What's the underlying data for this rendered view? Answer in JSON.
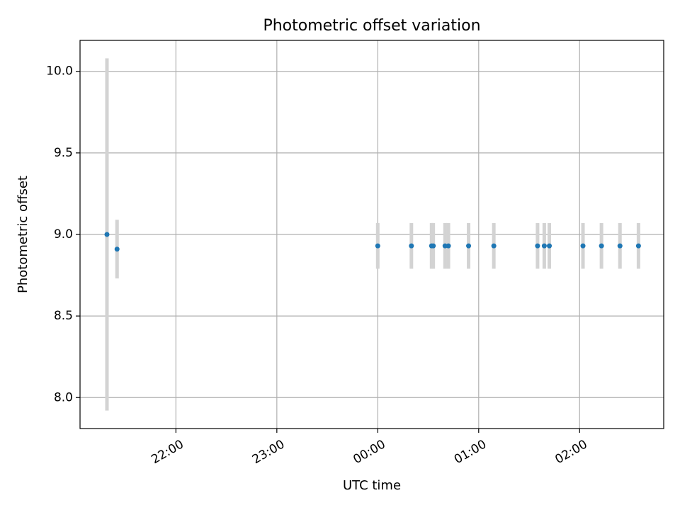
{
  "chart_data": {
    "type": "scatter",
    "title": "Photometric offset variation",
    "xlabel": "UTC time",
    "ylabel": "Photometric offset",
    "grid": true,
    "legend": "none",
    "x_range": [
      "21:03",
      "02:50"
    ],
    "ylim": [
      7.81,
      10.19
    ],
    "x_ticks": [
      "22:00",
      "23:00",
      "00:00",
      "01:00",
      "02:00"
    ],
    "y_ticks": [
      8.0,
      8.5,
      9.0,
      9.5,
      10.0
    ],
    "y_tick_labels": [
      "8.0",
      "8.5",
      "9.0",
      "9.5",
      "10.0"
    ],
    "series": [
      {
        "point_color": "#1f77b4",
        "errorbar_color": "#d3d3d3",
        "points": [
          {
            "x": "21:19",
            "y": 9.0,
            "err": 1.08
          },
          {
            "x": "21:25",
            "y": 8.91,
            "err": 0.18
          },
          {
            "x": "00:00",
            "y": 8.93,
            "err": 0.14
          },
          {
            "x": "00:20",
            "y": 8.93,
            "err": 0.14
          },
          {
            "x": "00:32",
            "y": 8.93,
            "err": 0.14
          },
          {
            "x": "00:33",
            "y": 8.93,
            "err": 0.14
          },
          {
            "x": "00:40",
            "y": 8.93,
            "err": 0.14
          },
          {
            "x": "00:42",
            "y": 8.93,
            "err": 0.14
          },
          {
            "x": "00:54",
            "y": 8.93,
            "err": 0.14
          },
          {
            "x": "01:09",
            "y": 8.93,
            "err": 0.14
          },
          {
            "x": "01:35",
            "y": 8.93,
            "err": 0.14
          },
          {
            "x": "01:39",
            "y": 8.93,
            "err": 0.14
          },
          {
            "x": "01:42",
            "y": 8.93,
            "err": 0.14
          },
          {
            "x": "02:02",
            "y": 8.93,
            "err": 0.14
          },
          {
            "x": "02:13",
            "y": 8.93,
            "err": 0.14
          },
          {
            "x": "02:24",
            "y": 8.93,
            "err": 0.14
          },
          {
            "x": "02:35",
            "y": 8.93,
            "err": 0.14
          }
        ]
      }
    ]
  }
}
